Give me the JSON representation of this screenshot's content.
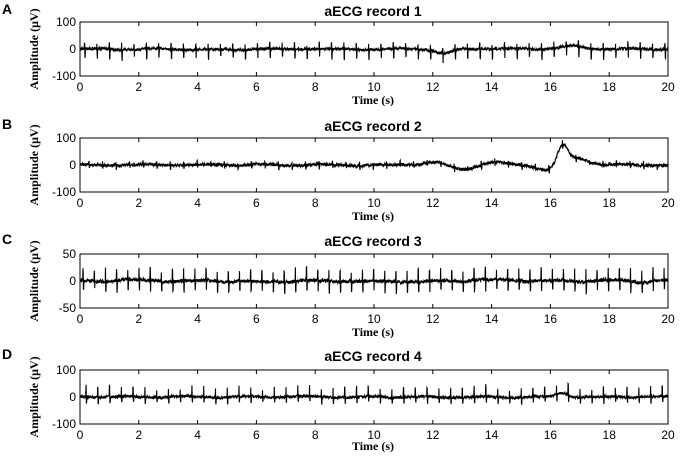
{
  "chart_data": [
    {
      "type": "line",
      "panel_letter": "A",
      "title": "aECG record 1",
      "xlabel": "Time (s)",
      "ylabel": "Amplitude (μV)",
      "xlim": [
        0,
        20
      ],
      "ylim": [
        -100,
        100
      ],
      "x_ticks": [
        0,
        2,
        4,
        6,
        8,
        10,
        12,
        14,
        16,
        18,
        20
      ],
      "y_ticks": [
        -100,
        0,
        100
      ],
      "grid": false,
      "line_color": "#000000",
      "signal": {
        "description_values": "synthetic periodic aECG trace",
        "beat_interval_s": 0.42,
        "beat_offset_s": 0.15,
        "spike_up": 20,
        "spike_down": -32,
        "noise_amplitude": 8,
        "baseline_events": [
          {
            "t": 12.4,
            "width": 0.4,
            "amp": -18
          },
          {
            "t": 16.7,
            "width": 0.5,
            "amp": 12
          }
        ]
      }
    },
    {
      "type": "line",
      "panel_letter": "B",
      "title": "aECG record 2",
      "xlabel": "Time (s)",
      "ylabel": "Amplitude (μV)",
      "xlim": [
        0,
        20
      ],
      "ylim": [
        -100,
        100
      ],
      "x_ticks": [
        0,
        2,
        4,
        6,
        8,
        10,
        12,
        14,
        16,
        18,
        20
      ],
      "y_ticks": [
        -100,
        0,
        100
      ],
      "grid": false,
      "line_color": "#000000",
      "signal": {
        "beat_interval_s": 0.46,
        "beat_offset_s": 0.3,
        "spike_up": 12,
        "spike_down": -12,
        "noise_amplitude": 9,
        "baseline_events": [
          {
            "t": 12.0,
            "width": 0.5,
            "amp": 12
          },
          {
            "t": 13.0,
            "width": 0.6,
            "amp": -15
          },
          {
            "t": 14.0,
            "width": 0.6,
            "amp": 10
          },
          {
            "t": 16.0,
            "width": 0.5,
            "amp": -20
          },
          {
            "t": 16.4,
            "width": 0.25,
            "amp": 70
          },
          {
            "t": 16.9,
            "width": 0.6,
            "amp": 25
          }
        ]
      }
    },
    {
      "type": "line",
      "panel_letter": "C",
      "title": "aECG record 3",
      "xlabel": "Time (s)",
      "ylabel": "Amplitude (μV)",
      "xlim": [
        0,
        20
      ],
      "ylim": [
        -50,
        50
      ],
      "x_ticks": [
        0,
        2,
        4,
        6,
        8,
        10,
        12,
        14,
        16,
        18,
        20
      ],
      "y_ticks": [
        -50,
        0,
        50
      ],
      "grid": false,
      "line_color": "#000000",
      "signal": {
        "beat_interval_s": 0.38,
        "beat_offset_s": 0.1,
        "spike_up": 20,
        "spike_down": -18,
        "noise_amplitude": 5,
        "baseline_events": []
      }
    },
    {
      "type": "line",
      "panel_letter": "D",
      "title": "aECG record 4",
      "xlabel": "Time (s)",
      "ylabel": "Amplitude (μV)",
      "xlim": [
        0,
        20
      ],
      "ylim": [
        -100,
        100
      ],
      "x_ticks": [
        0,
        2,
        4,
        6,
        8,
        10,
        12,
        14,
        16,
        18,
        20
      ],
      "y_ticks": [
        -100,
        0,
        100
      ],
      "grid": false,
      "line_color": "#000000",
      "signal": {
        "beat_interval_s": 0.4,
        "beat_offset_s": 0.2,
        "spike_up": 35,
        "spike_down": -20,
        "noise_amplitude": 8,
        "baseline_events": [
          {
            "t": 16.4,
            "width": 0.3,
            "amp": 15
          }
        ]
      }
    }
  ]
}
